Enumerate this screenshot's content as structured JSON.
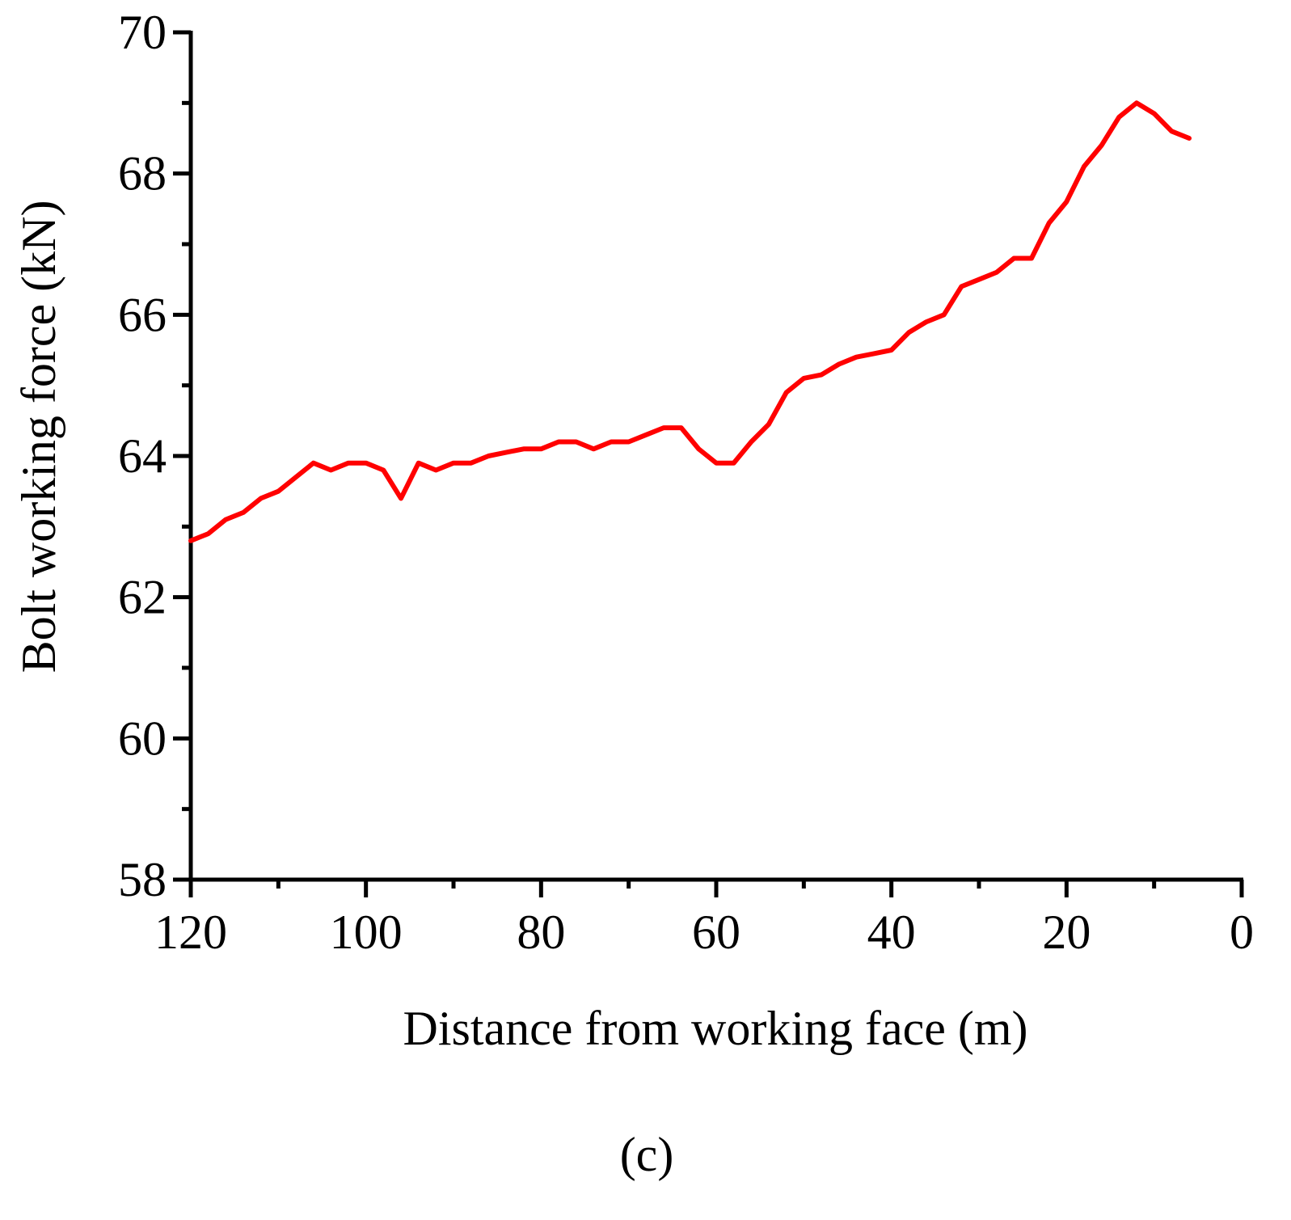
{
  "chart_data": {
    "type": "line",
    "xlabel": "Distance from working face (m)",
    "ylabel": "Bolt working force (kN)",
    "panel_label": "(c)",
    "xlim": [
      120,
      0
    ],
    "ylim": [
      58,
      70
    ],
    "x_reversed": true,
    "x_ticks": [
      120,
      100,
      80,
      60,
      40,
      20,
      0
    ],
    "x_tick_labels": [
      "120",
      "100",
      "80",
      "60",
      "40",
      "20",
      "0"
    ],
    "y_ticks": [
      58,
      60,
      62,
      64,
      66,
      68,
      70
    ],
    "y_tick_labels": [
      "58",
      "60",
      "62",
      "64",
      "66",
      "68",
      "70"
    ],
    "grid": false,
    "series": [
      {
        "color": "#ff0000",
        "x": [
          120,
          118,
          116,
          114,
          112,
          110,
          108,
          106,
          104,
          102,
          100,
          98,
          96,
          94,
          92,
          90,
          88,
          86,
          84,
          82,
          80,
          78,
          76,
          74,
          72,
          70,
          68,
          66,
          64,
          62,
          60,
          58,
          56,
          54,
          52,
          50,
          48,
          46,
          44,
          42,
          40,
          38,
          36,
          34,
          32,
          30,
          28,
          26,
          24,
          22,
          20,
          18,
          16,
          14,
          12,
          10,
          8,
          6
        ],
        "y": [
          62.8,
          62.9,
          63.1,
          63.2,
          63.4,
          63.5,
          63.7,
          63.9,
          63.8,
          63.9,
          63.9,
          63.8,
          63.4,
          63.9,
          63.8,
          63.9,
          63.9,
          64.0,
          64.05,
          64.1,
          64.1,
          64.2,
          64.2,
          64.1,
          64.2,
          64.2,
          64.3,
          64.4,
          64.4,
          64.1,
          63.9,
          63.9,
          64.2,
          64.45,
          64.9,
          65.1,
          65.15,
          65.3,
          65.4,
          65.45,
          65.5,
          65.75,
          65.9,
          66.0,
          66.4,
          66.5,
          66.6,
          66.8,
          66.8,
          67.3,
          67.6,
          68.1,
          68.4,
          68.8,
          69.0,
          68.85,
          68.6,
          68.5
        ]
      }
    ]
  }
}
